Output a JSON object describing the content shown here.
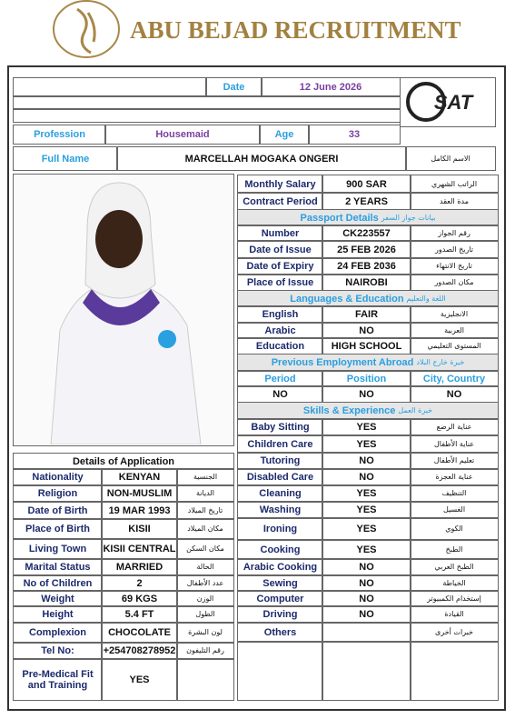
{
  "header": {
    "title": "ABU BEJAD RECRUITMENT"
  },
  "top": {
    "date_label": "Date",
    "date": "12 June 2026",
    "logo_text": "SAT",
    "profession_label": "Profession",
    "profession": "Housemaid",
    "age_label": "Age",
    "age": "33",
    "full_name_label": "Full Name",
    "full_name": "MARCELLAH MOGAKA ONGERI",
    "full_name_ar": "الاسم الكامل"
  },
  "right": {
    "rows": [
      {
        "label": "Monthly Salary",
        "value": "900 SAR",
        "arabic": "الراتب الشهري"
      },
      {
        "label": "Contract Period",
        "value": "2 YEARS",
        "arabic": "مدة العقد"
      },
      {
        "heading": "Passport Details",
        "heading_ar": "بيانات جواز السفر"
      },
      {
        "label": "Number",
        "value": "CK223557",
        "arabic": "رقم الجواز"
      },
      {
        "label": "Date of Issue",
        "value": "25 FEB 2026",
        "arabic": "تاريخ الصدور"
      },
      {
        "label": "Date of Expiry",
        "value": "24 FEB 2036",
        "arabic": "تاريخ الانتهاء"
      },
      {
        "label": "Place of Issue",
        "value": "NAIROBI",
        "arabic": "مكان الصدور"
      },
      {
        "heading": "Languages & Education",
        "heading_ar": "اللغة والتعليم"
      },
      {
        "label": "English",
        "value": "FAIR",
        "arabic": "الانجليزية"
      },
      {
        "label": "Arabic",
        "value": "NO",
        "arabic": "العربية"
      },
      {
        "label": "Education",
        "value": "HIGH SCHOOL",
        "arabic": "المستوى التعليمي"
      },
      {
        "heading": "Previous Employment Abroad",
        "heading_ar": "خبرة خارج البلاد"
      },
      {
        "columns": [
          "Period",
          "Position",
          "City, Country"
        ]
      },
      {
        "columns": [
          "NO",
          "NO",
          "NO"
        ]
      },
      {
        "heading": "Skills & Experience",
        "heading_ar": "خبرة العمل"
      },
      {
        "label": "Baby Sitting",
        "value": "YES",
        "arabic": "عناية الرضع"
      },
      {
        "label": "Children Care",
        "value": "YES",
        "arabic": "عناية الأطفال"
      },
      {
        "label": "Tutoring",
        "value": "NO",
        "arabic": "تعليم الأطفال"
      },
      {
        "label": "Disabled Care",
        "value": "NO",
        "arabic": "عناية العجزة"
      },
      {
        "label": "Cleaning",
        "value": "YES",
        "arabic": "التنظيف"
      },
      {
        "label": "Washing",
        "value": "YES",
        "arabic": "الغسيل"
      },
      {
        "label": "Ironing",
        "value": "YES",
        "arabic": "الكوي"
      },
      {
        "label": "Cooking",
        "value": "YES",
        "arabic": "الطبخ"
      },
      {
        "label": "Arabic Cooking",
        "value": "NO",
        "arabic": "الطبخ العربي"
      },
      {
        "label": "Sewing",
        "value": "NO",
        "arabic": "الخياطة"
      },
      {
        "label": "Computer",
        "value": "NO",
        "arabic": "إستخدام الكمبيوتر"
      },
      {
        "label": "Driving",
        "value": "NO",
        "arabic": "القيادة"
      },
      {
        "label": "Others",
        "arabic": "خبرات أخرى"
      }
    ]
  },
  "left": {
    "rows": [
      {
        "heading": "Details of Application"
      },
      {
        "label": "Nationality",
        "value": "KENYAN",
        "arabic": "الجنسية"
      },
      {
        "label": "Religion",
        "value": "NON-MUSLIM",
        "arabic": "الديانة"
      },
      {
        "label": "Date of Birth",
        "value": "19 MAR 1993",
        "arabic": "تاريخ الميلاد"
      },
      {
        "label": "Place of Birth",
        "value": "KISII",
        "arabic": "مكان الميلاد"
      },
      {
        "label": "Living Town",
        "value": "KISII CENTRAL",
        "arabic": "مكان السكن"
      },
      {
        "label": "Marital Status",
        "value": "MARRIED",
        "arabic": "الحالة"
      },
      {
        "label": "No of Children",
        "value": "2",
        "arabic": "عدد الأطفال"
      },
      {
        "label": "Weight",
        "value": "69 KGS",
        "arabic": "الوزن"
      },
      {
        "label": "Height",
        "value": "5.4 FT",
        "arabic": "الطول"
      },
      {
        "label": "Complexion",
        "value": "CHOCOLATE",
        "arabic": "لون البشرة"
      },
      {
        "label": "Tel No:",
        "value": "+254708278952",
        "arabic": "رقم التليفون"
      },
      {
        "label": "Pre-Medical Fit and Training",
        "value": "YES"
      }
    ]
  }
}
